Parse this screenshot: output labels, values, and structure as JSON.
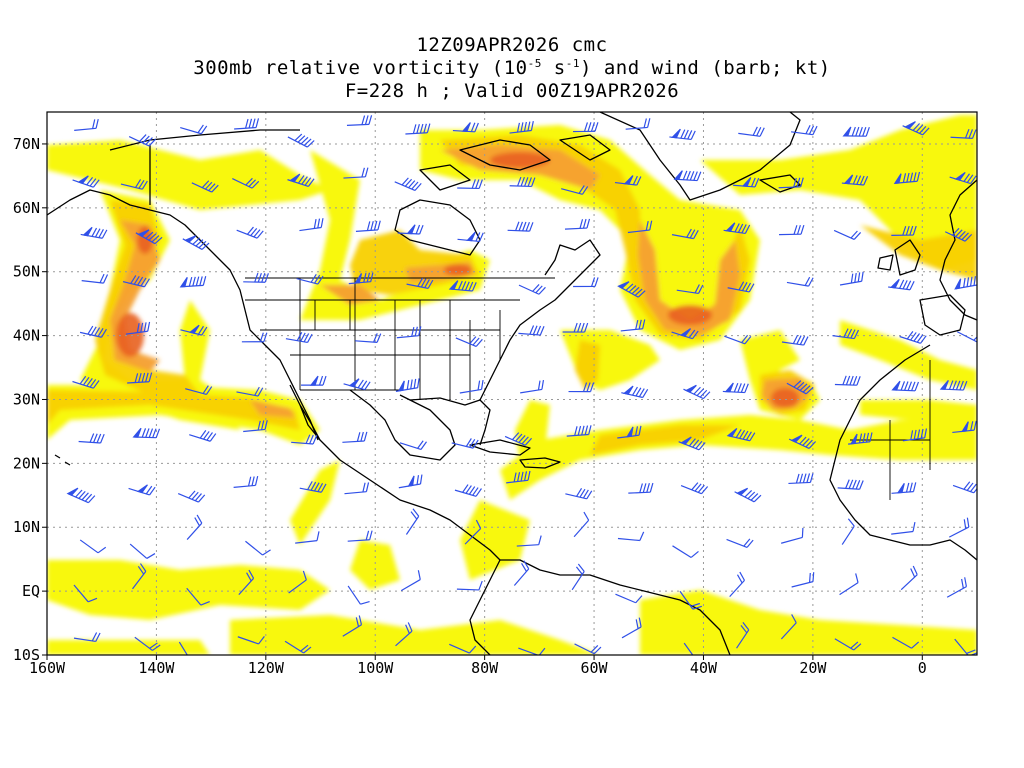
{
  "header": {
    "line1": "12Z09APR2026 cmc",
    "line2_pre": "300mb relative vorticity (10",
    "line2_exp1": "-5",
    "line2_mid": " s",
    "line2_exp2": "-1",
    "line2_post": ") and wind (barb; kt)",
    "line3": "F=228 h ; Valid 00Z19APR2026"
  },
  "map": {
    "lon_range": [
      -160,
      10
    ],
    "lat_range": [
      -10,
      75
    ],
    "x_ticks": [
      {
        "lon": -160,
        "label": "160W"
      },
      {
        "lon": -140,
        "label": "140W"
      },
      {
        "lon": -120,
        "label": "120W"
      },
      {
        "lon": -100,
        "label": "100W"
      },
      {
        "lon": -80,
        "label": "80W"
      },
      {
        "lon": -60,
        "label": "60W"
      },
      {
        "lon": -40,
        "label": "40W"
      },
      {
        "lon": -20,
        "label": "20W"
      },
      {
        "lon": 0,
        "label": "0"
      }
    ],
    "y_ticks": [
      {
        "lat": 70,
        "label": "70N"
      },
      {
        "lat": 60,
        "label": "60N"
      },
      {
        "lat": 50,
        "label": "50N"
      },
      {
        "lat": 40,
        "label": "40N"
      },
      {
        "lat": 30,
        "label": "30N"
      },
      {
        "lat": 20,
        "label": "20N"
      },
      {
        "lat": 10,
        "label": "10N"
      },
      {
        "lat": 0,
        "label": "EQ"
      },
      {
        "lat": -10,
        "label": "10S"
      }
    ],
    "colors": {
      "shade_low": "#f8f800",
      "shade_mid": "#f8d000",
      "shade_high": "#f5a030",
      "shade_max": "#e86020",
      "barb": "#3050e8",
      "coast": "#000000",
      "grid": "#999999"
    },
    "vorticity_features": [
      {
        "lon": -145,
        "lat": 42,
        "level": "max"
      },
      {
        "lon": -142,
        "lat": 55,
        "level": "high"
      },
      {
        "lon": -50,
        "lat": 45,
        "level": "high"
      },
      {
        "lon": -42,
        "lat": 48,
        "level": "max"
      },
      {
        "lon": -25,
        "lat": 30,
        "level": "max"
      },
      {
        "lon": -85,
        "lat": 50,
        "level": "high"
      },
      {
        "lon": -100,
        "lat": 45,
        "level": "high"
      },
      {
        "lon": -75,
        "lat": 67,
        "level": "high"
      }
    ]
  }
}
